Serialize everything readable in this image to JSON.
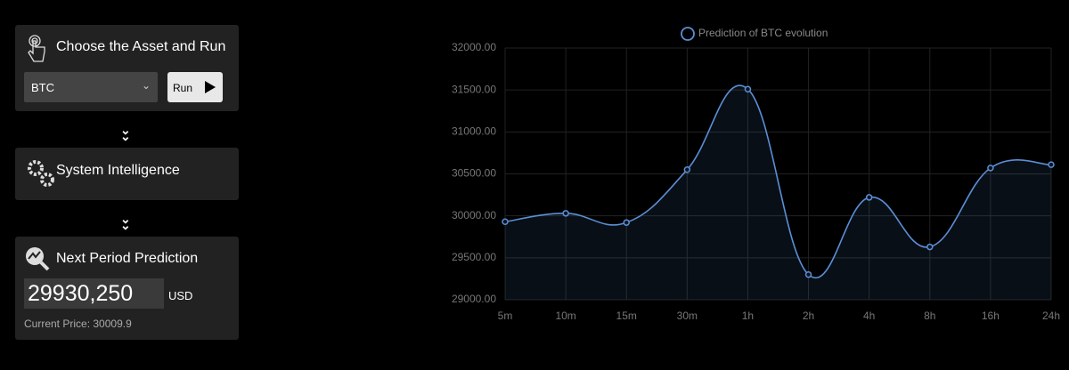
{
  "panels": {
    "asset": {
      "title": "Choose the Asset and Run",
      "select": "BTC",
      "button": "Run"
    },
    "intelligence": {
      "title": "System Intelligence"
    },
    "prediction": {
      "title": "Next Period Prediction",
      "value": "29930,250",
      "unit": "USD",
      "current_label": "Current Price:",
      "current_value": "30009.9"
    }
  },
  "chart_data": {
    "type": "line",
    "categories": [
      "5m",
      "10m",
      "15m",
      "30m",
      "1h",
      "2h",
      "4h",
      "8h",
      "16h",
      "24h"
    ],
    "series": [
      {
        "name": "Prediction of BTC evolution",
        "color": "#5b8fd6",
        "values": [
          29930,
          30030,
          29920,
          30550,
          31510,
          29300,
          30220,
          29630,
          30570,
          30610
        ]
      }
    ],
    "ylim": [
      29000,
      32000
    ],
    "yticks": [
      {
        "value": 29000,
        "label": "29000.00"
      },
      {
        "value": 29500,
        "label": "29500.00"
      },
      {
        "value": 30000,
        "label": "30000.00"
      },
      {
        "value": 30500,
        "label": "30500.00"
      },
      {
        "value": 31000,
        "label": "31000.00"
      },
      {
        "value": 31500,
        "label": "31500.00"
      },
      {
        "value": 32000,
        "label": "32000.00"
      }
    ],
    "grid": true
  }
}
